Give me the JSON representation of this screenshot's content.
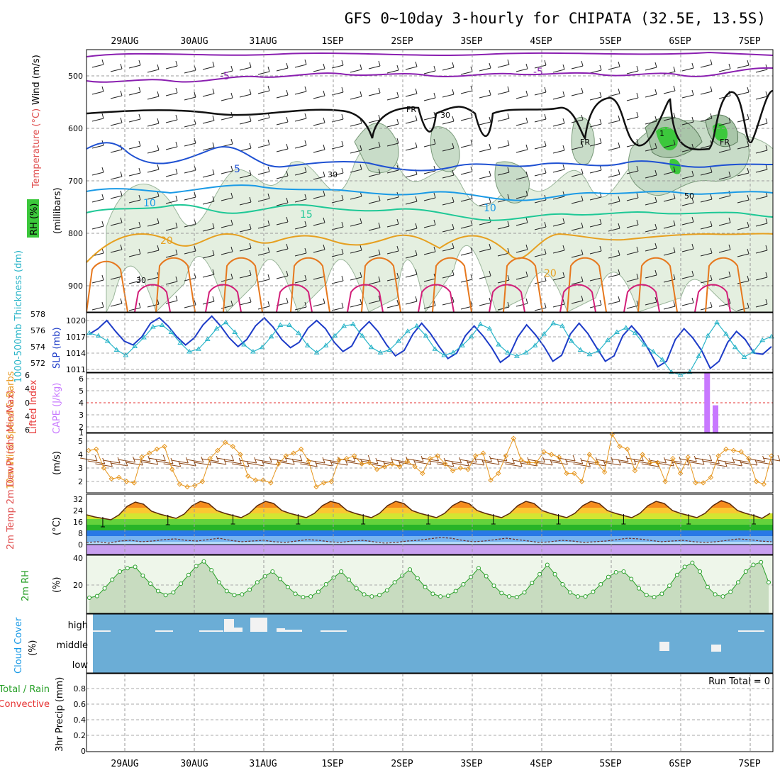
{
  "chart_data": {
    "type": "meteogram",
    "title": "GFS 0~10day 3-hourly for CHIPATA (32.5E, 13.5S)",
    "dates": [
      "29AUG",
      "30AUG",
      "31AUG",
      "1SEP",
      "2SEP",
      "3SEP",
      "4SEP",
      "5SEP",
      "6SEP",
      "7SEP"
    ],
    "colors": {
      "rh_green": "#3cc83c",
      "temp_purple": "#8a1fb0",
      "temp_blue": "#1e50d2",
      "temp_cyan": "#1a9ae6",
      "temp_teal": "#1ec896",
      "temp_yellow": "#e6a020",
      "temp_orange": "#e6781e",
      "temp_magenta": "#d21e78",
      "slp": "#1e3cc8",
      "thickness": "#28b4c8",
      "cape": "#c878ff",
      "lifted_index": "#e63232",
      "wind_speed": "#e6961e",
      "cloud_bg": "#6badd6",
      "cloud_fill": "#f2f2f2"
    },
    "panels": {
      "upper": {
        "ylabel_wind": "Wind (m/s)",
        "ylabel_temp": "Temperature (°C)",
        "ylabel_rh": "RH (%)",
        "ylabel_p": "(millibars)",
        "yticks": [
          500,
          600,
          700,
          800,
          900
        ],
        "contour_labels": [
          "-5",
          "-5",
          "FR",
          "FR",
          "FR",
          "5",
          "10",
          "10",
          "15",
          "20",
          "20",
          "30",
          "30",
          "30",
          "50",
          "1"
        ]
      },
      "pressure": {
        "ylabel_slp": "SLP (mb)",
        "ylabel_thick": "1000-500mb Thickness (dm)",
        "left_ticks": [
          "578",
          "576",
          "574",
          "572"
        ],
        "right_ticks": [
          "1020",
          "1017",
          "1014",
          "1011"
        ],
        "slp_mb": [
          1017.5,
          1018.5,
          1020.0,
          1018.0,
          1016.2,
          1015.5,
          1017.0,
          1019.5,
          1020.5,
          1019.0,
          1017.0,
          1015.5,
          1016.8,
          1019.2,
          1020.8,
          1019.0,
          1016.8,
          1015.2,
          1016.5,
          1019.0,
          1020.5,
          1018.8,
          1016.5,
          1015.0,
          1016.0,
          1018.6,
          1020.0,
          1018.5,
          1016.0,
          1014.3,
          1015.3,
          1018.2,
          1019.8,
          1018.0,
          1015.5,
          1013.5,
          1014.5,
          1017.5,
          1019.5,
          1017.6,
          1015.2,
          1013.0,
          1014.0,
          1017.2,
          1019.0,
          1017.2,
          1015.0,
          1012.3,
          1013.5,
          1017.0,
          1019.2,
          1017.4,
          1015.2,
          1012.5,
          1013.6,
          1017.5,
          1019.5,
          1017.6,
          1015.0,
          1012.5,
          1013.5,
          1017.2,
          1019.0,
          1017.2,
          1014.5,
          1011.5,
          1012.5,
          1016.5,
          1018.5,
          1016.8,
          1014.5,
          1011.2,
          1012.5,
          1016.0,
          1018.0,
          1016.5,
          1014.0,
          1013.8,
          1015.2
        ],
        "thickness_dm": [
          575.7,
          575.4,
          574.8,
          573.8,
          573.2,
          574.2,
          575.2,
          576.4,
          576.6,
          575.8,
          574.6,
          573.6,
          573.9,
          575.0,
          576.2,
          576.9,
          575.8,
          574.4,
          573.6,
          574.1,
          575.3,
          576.6,
          576.6,
          575.7,
          574.3,
          573.5,
          574.3,
          575.4,
          576.5,
          576.7,
          575.4,
          574.1,
          573.5,
          573.8,
          574.8,
          575.9,
          576.5,
          575.4,
          573.9,
          573.2,
          573.5,
          574.3,
          575.3,
          576.7,
          576.2,
          574.4,
          573.5,
          573.1,
          573.5,
          574.3,
          575.6,
          576.8,
          576.5,
          574.8,
          573.8,
          573.3,
          573.7,
          574.9,
          575.8,
          576.3,
          575.7,
          574.4,
          573.6,
          572.7,
          571.3,
          571.0,
          571.3,
          573.1,
          575.4,
          576.9,
          575.6,
          574.1,
          573.0,
          573.6,
          574.9,
          575.3
        ]
      },
      "instability": {
        "ylabel_li": "Lifted Index",
        "ylabel_cape": "CAPE (J/kg)",
        "left_ticks": [
          "6",
          "4",
          "0",
          "4",
          "6"
        ],
        "right_ticks": [
          "6",
          "5",
          "4",
          "3",
          "2",
          "1"
        ],
        "cape_bars": [
          {
            "date_index": 8.38,
            "value": 6.0
          },
          {
            "date_index": 8.5,
            "value": 3.0
          }
        ]
      },
      "wind10m": {
        "ylabel": "10m Wind Speed & Barbs",
        "unit": "(m/s)",
        "yticks": [
          "5",
          "4",
          "3",
          "2"
        ],
        "speed_ms": [
          4.3,
          4.4,
          3.0,
          2.2,
          2.3,
          2.0,
          1.9,
          3.8,
          4.1,
          4.4,
          4.6,
          2.9,
          1.8,
          1.6,
          1.7,
          2.0,
          3.7,
          4.3,
          4.9,
          4.6,
          4.0,
          2.4,
          2.1,
          2.1,
          1.9,
          3.3,
          3.9,
          4.1,
          4.4,
          3.5,
          1.6,
          1.9,
          2.0,
          3.6,
          3.7,
          3.9,
          3.3,
          3.4,
          2.9,
          3.1,
          3.3,
          3.1,
          3.5,
          3.1,
          2.6,
          3.7,
          3.9,
          3.3,
          2.8,
          3.0,
          2.9,
          3.9,
          4.1,
          2.1,
          2.6,
          3.9,
          5.2,
          3.6,
          3.4,
          3.4,
          4.2,
          4.0,
          3.8,
          2.6,
          2.6,
          2.0,
          4.0,
          3.4,
          2.7,
          5.5,
          4.6,
          4.4,
          2.8,
          4.0,
          3.4,
          3.4,
          2.0,
          3.7,
          2.6,
          3.8,
          1.9,
          1.9,
          2.3,
          3.9,
          4.4,
          4.3,
          4.2,
          3.7,
          2.0,
          1.8,
          3.9
        ]
      },
      "temp2m": {
        "ylabel": "2m Temp 2m DewPt (6hr Min/Max)",
        "unit": "(°C)",
        "yticks": [
          "32",
          "24",
          "16",
          "8",
          "0"
        ],
        "temp_c": [
          21.0,
          19.5,
          18.5,
          17.5,
          21.0,
          27.0,
          30.0,
          28.5,
          23.5,
          21.5,
          20.0,
          18.5,
          21.5,
          27.5,
          30.5,
          29.0,
          24.0,
          22.0,
          20.5,
          19.0,
          22.0,
          27.5,
          30.5,
          29.0,
          24.0,
          22.0,
          20.5,
          19.0,
          22.0,
          27.5,
          30.5,
          29.0,
          24.0,
          22.0,
          20.5,
          19.0,
          22.0,
          27.5,
          30.5,
          29.0,
          24.0,
          22.0,
          20.5,
          19.0,
          22.0,
          27.5,
          30.5,
          29.0,
          24.0,
          22.0,
          20.5,
          19.0,
          22.0,
          27.5,
          30.5,
          29.0,
          24.0,
          22.0,
          20.5,
          19.0,
          22.0,
          27.5,
          30.5,
          29.0,
          24.0,
          22.0,
          20.5,
          19.0,
          22.0,
          27.5,
          30.5,
          29.0,
          24.0,
          22.0,
          20.5,
          19.0,
          22.0,
          27.5,
          31.0,
          29.0,
          24.0,
          22.0,
          20.5,
          18.5,
          22.0
        ],
        "dewpoint_c": [
          1.5,
          2.0,
          1.0,
          2.5,
          3.0,
          2.0,
          2.5,
          3.5,
          4.0,
          3.0,
          2.5,
          3.5,
          4.5,
          3.0,
          2.0,
          2.5,
          3.0,
          2.0,
          1.5,
          2.5,
          3.5,
          3.0,
          2.0,
          1.5,
          2.5,
          3.0,
          2.0,
          1.0,
          1.5,
          2.5,
          3.0,
          4.0,
          5.0,
          4.5,
          3.0,
          2.0,
          2.5,
          3.5,
          4.5,
          3.5,
          2.5,
          1.5,
          2.0,
          3.0,
          2.5,
          1.5,
          2.0,
          2.5,
          3.5,
          4.5,
          4.0,
          3.0,
          2.0,
          2.5,
          3.0,
          2.0,
          1.5,
          2.0,
          3.0,
          4.0,
          3.5,
          2.5,
          2.0
        ]
      },
      "rh2m": {
        "ylabel": "2m RH",
        "unit": "(%)",
        "yticks": [
          "40",
          "20"
        ],
        "rh_pct": [
          10.5,
          11.8,
          17.5,
          24.0,
          30.0,
          32.5,
          33.5,
          27.0,
          21.0,
          15.5,
          12.5,
          14.5,
          21.0,
          27.5,
          34.0,
          37.5,
          31.0,
          22.0,
          15.5,
          12.5,
          13.0,
          16.5,
          22.0,
          26.5,
          30.0,
          24.5,
          18.5,
          13.5,
          11.0,
          11.5,
          15.0,
          20.5,
          25.5,
          30.0,
          24.0,
          17.5,
          13.0,
          11.5,
          12.5,
          16.0,
          22.0,
          27.0,
          31.5,
          25.0,
          18.5,
          13.5,
          11.5,
          12.0,
          15.5,
          20.5,
          26.0,
          32.5,
          26.5,
          19.5,
          14.0,
          11.5,
          11.0,
          14.5,
          21.5,
          28.0,
          35.0,
          28.0,
          20.5,
          14.5,
          11.5,
          11.5,
          15.0,
          20.5,
          26.0,
          29.5,
          30.0,
          24.5,
          17.5,
          12.5,
          11.0,
          13.5,
          19.5,
          27.5,
          33.5,
          36.5,
          30.0,
          18.5,
          13.0,
          11.5,
          15.0,
          22.0,
          30.0,
          35.0,
          37.0,
          22.0
        ]
      },
      "cloud": {
        "ylabel": "Cloud Cover",
        "unit": "(%)",
        "levels": [
          "high",
          "middle",
          "low"
        ]
      },
      "precip": {
        "ylabel": "3hr Precip (mm)",
        "legend_total": "Total / Rain",
        "legend_conv": "Convective",
        "run_total": "Run Total = 0",
        "yticks": [
          "0.8",
          "0.6",
          "0.4",
          "0.2",
          "0"
        ]
      }
    }
  }
}
